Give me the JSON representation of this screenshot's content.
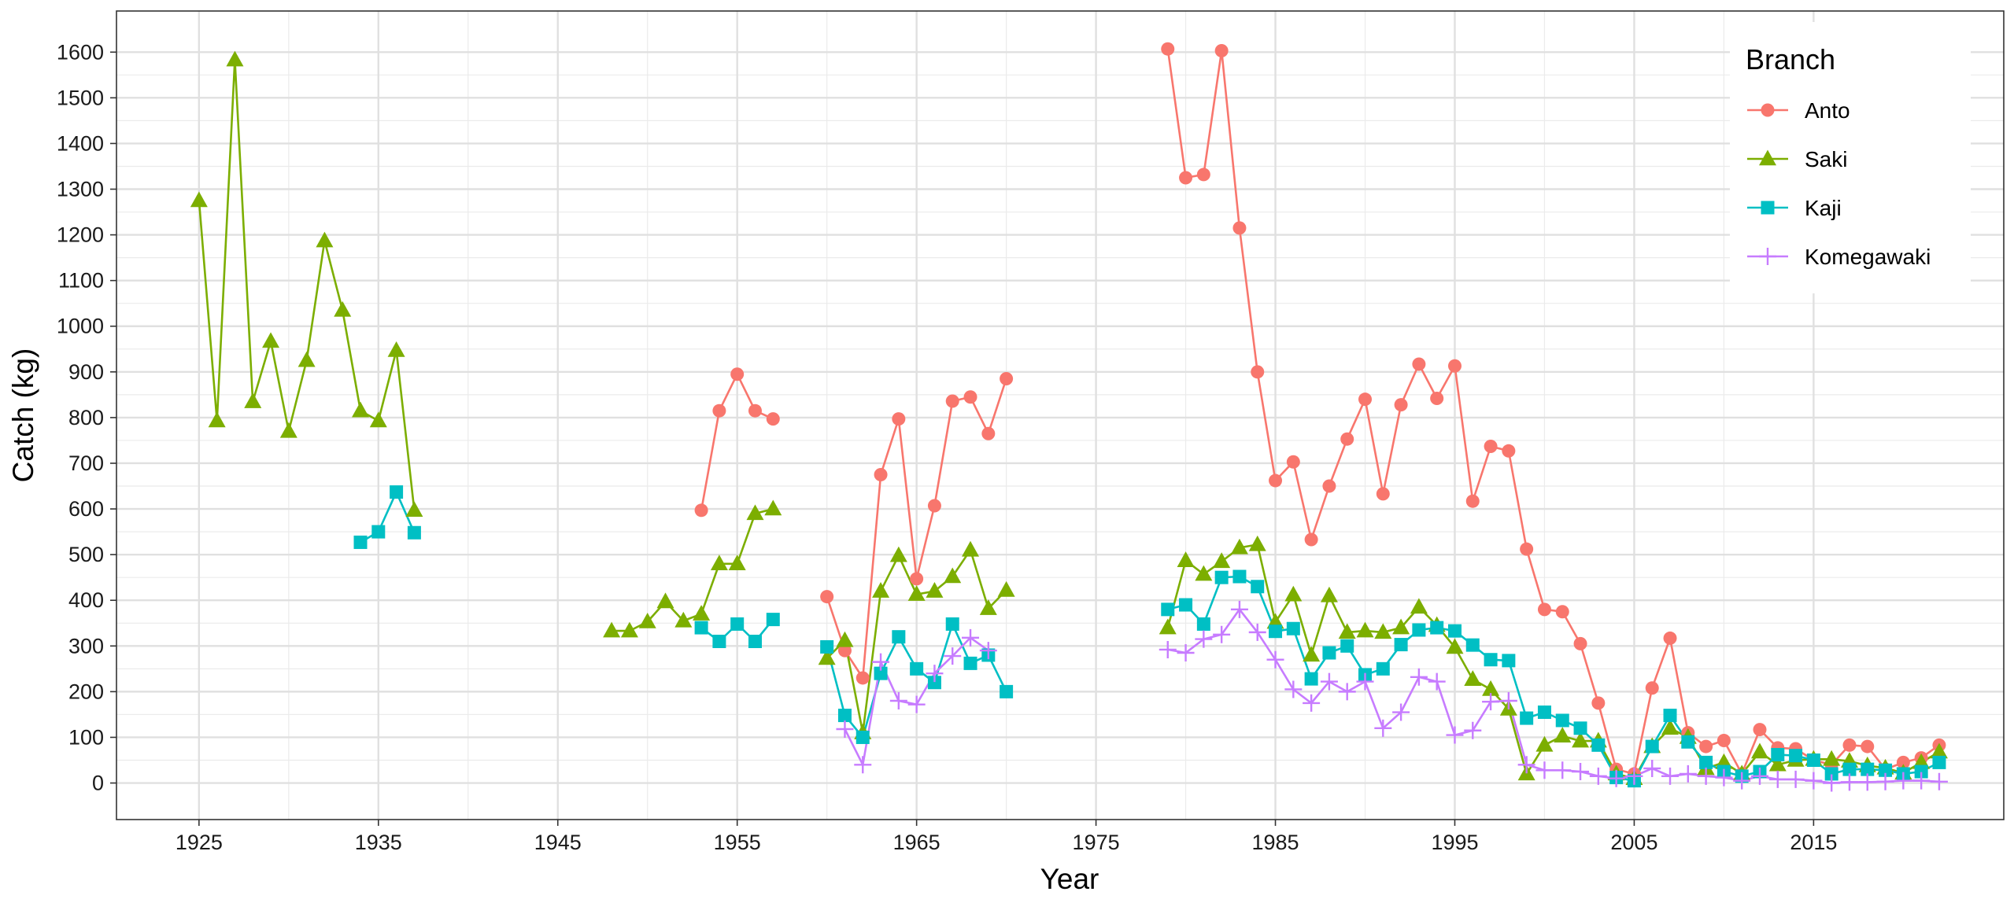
{
  "chart_data": {
    "type": "line",
    "xlabel": "Year",
    "ylabel": "Catch (kg)",
    "xlim": [
      1920.4,
      2025.6
    ],
    "ylim": [
      -80,
      1690
    ],
    "xticks": [
      1925,
      1935,
      1945,
      1955,
      1965,
      1975,
      1985,
      1995,
      2005,
      2015
    ],
    "yticks": [
      0,
      100,
      200,
      300,
      400,
      500,
      600,
      700,
      800,
      900,
      1000,
      1100,
      1200,
      1300,
      1400,
      1500,
      1600
    ],
    "grid": true,
    "legend": {
      "title": "Branch",
      "position": "top-right"
    },
    "series": [
      {
        "name": "Anto",
        "color": "#F8766D",
        "marker": "circle",
        "points": [
          [
            1953,
            597
          ],
          [
            1954,
            815
          ],
          [
            1955,
            895
          ],
          [
            1956,
            815
          ],
          [
            1957,
            797
          ],
          [
            1960,
            408
          ],
          [
            1961,
            290
          ],
          [
            1962,
            230
          ],
          [
            1963,
            675
          ],
          [
            1964,
            797
          ],
          [
            1965,
            447
          ],
          [
            1966,
            607
          ],
          [
            1967,
            836
          ],
          [
            1968,
            845
          ],
          [
            1969,
            765
          ],
          [
            1970,
            885
          ],
          [
            1979,
            1607
          ],
          [
            1980,
            1325
          ],
          [
            1981,
            1332
          ],
          [
            1982,
            1603
          ],
          [
            1983,
            1215
          ],
          [
            1984,
            900
          ],
          [
            1985,
            662
          ],
          [
            1986,
            703
          ],
          [
            1987,
            533
          ],
          [
            1988,
            650
          ],
          [
            1989,
            753
          ],
          [
            1990,
            840
          ],
          [
            1991,
            633
          ],
          [
            1992,
            828
          ],
          [
            1993,
            917
          ],
          [
            1994,
            842
          ],
          [
            1995,
            913
          ],
          [
            1996,
            617
          ],
          [
            1997,
            737
          ],
          [
            1998,
            727
          ],
          [
            1999,
            512
          ],
          [
            2000,
            380
          ],
          [
            2001,
            375
          ],
          [
            2002,
            305
          ],
          [
            2003,
            175
          ],
          [
            2004,
            30
          ],
          [
            2005,
            20
          ],
          [
            2006,
            208
          ],
          [
            2007,
            317
          ],
          [
            2008,
            110
          ],
          [
            2009,
            80
          ],
          [
            2010,
            93
          ],
          [
            2011,
            20
          ],
          [
            2012,
            117
          ],
          [
            2013,
            77
          ],
          [
            2014,
            75
          ],
          [
            2015,
            50
          ],
          [
            2016,
            40
          ],
          [
            2017,
            83
          ],
          [
            2018,
            80
          ],
          [
            2019,
            30
          ],
          [
            2020,
            45
          ],
          [
            2021,
            55
          ],
          [
            2022,
            83
          ]
        ]
      },
      {
        "name": "Saki",
        "color": "#7CAE00",
        "marker": "triangle",
        "points": [
          [
            1925,
            1275
          ],
          [
            1926,
            793
          ],
          [
            1927,
            1583
          ],
          [
            1928,
            835
          ],
          [
            1929,
            967
          ],
          [
            1930,
            770
          ],
          [
            1931,
            925
          ],
          [
            1932,
            1187
          ],
          [
            1933,
            1035
          ],
          [
            1934,
            815
          ],
          [
            1935,
            793
          ],
          [
            1936,
            947
          ],
          [
            1937,
            597
          ],
          [
            1948,
            333
          ],
          [
            1949,
            333
          ],
          [
            1950,
            353
          ],
          [
            1951,
            397
          ],
          [
            1952,
            355
          ],
          [
            1953,
            370
          ],
          [
            1954,
            480
          ],
          [
            1955,
            480
          ],
          [
            1956,
            590
          ],
          [
            1957,
            600
          ],
          [
            1960,
            273
          ],
          [
            1961,
            312
          ],
          [
            1962,
            110
          ],
          [
            1963,
            420
          ],
          [
            1964,
            498
          ],
          [
            1965,
            413
          ],
          [
            1966,
            420
          ],
          [
            1967,
            452
          ],
          [
            1968,
            510
          ],
          [
            1969,
            382
          ],
          [
            1970,
            422
          ],
          [
            1979,
            340
          ],
          [
            1980,
            487
          ],
          [
            1981,
            457
          ],
          [
            1982,
            485
          ],
          [
            1983,
            515
          ],
          [
            1984,
            522
          ],
          [
            1985,
            352
          ],
          [
            1986,
            412
          ],
          [
            1987,
            280
          ],
          [
            1988,
            410
          ],
          [
            1989,
            330
          ],
          [
            1990,
            333
          ],
          [
            1991,
            330
          ],
          [
            1992,
            340
          ],
          [
            1993,
            385
          ],
          [
            1994,
            345
          ],
          [
            1995,
            297
          ],
          [
            1996,
            227
          ],
          [
            1997,
            205
          ],
          [
            1998,
            162
          ],
          [
            1999,
            20
          ],
          [
            2000,
            83
          ],
          [
            2001,
            103
          ],
          [
            2002,
            92
          ],
          [
            2003,
            92
          ],
          [
            2004,
            20
          ],
          [
            2005,
            10
          ],
          [
            2006,
            80
          ],
          [
            2007,
            120
          ],
          [
            2008,
            100
          ],
          [
            2009,
            32
          ],
          [
            2010,
            45
          ],
          [
            2011,
            20
          ],
          [
            2012,
            68
          ],
          [
            2013,
            40
          ],
          [
            2014,
            50
          ],
          [
            2015,
            52
          ],
          [
            2016,
            52
          ],
          [
            2017,
            48
          ],
          [
            2018,
            38
          ],
          [
            2019,
            33
          ],
          [
            2020,
            22
          ],
          [
            2021,
            45
          ],
          [
            2022,
            68
          ]
        ]
      },
      {
        "name": "Kaji",
        "color": "#00BFC4",
        "marker": "square",
        "points": [
          [
            1934,
            527
          ],
          [
            1935,
            550
          ],
          [
            1936,
            637
          ],
          [
            1937,
            548
          ],
          [
            1953,
            340
          ],
          [
            1954,
            310
          ],
          [
            1955,
            348
          ],
          [
            1956,
            310
          ],
          [
            1957,
            358
          ],
          [
            1960,
            298
          ],
          [
            1961,
            148
          ],
          [
            1962,
            100
          ],
          [
            1963,
            240
          ],
          [
            1964,
            320
          ],
          [
            1965,
            250
          ],
          [
            1966,
            220
          ],
          [
            1967,
            348
          ],
          [
            1968,
            262
          ],
          [
            1969,
            280
          ],
          [
            1970,
            200
          ],
          [
            1979,
            380
          ],
          [
            1980,
            390
          ],
          [
            1981,
            348
          ],
          [
            1982,
            450
          ],
          [
            1983,
            452
          ],
          [
            1984,
            430
          ],
          [
            1985,
            332
          ],
          [
            1986,
            338
          ],
          [
            1987,
            228
          ],
          [
            1988,
            285
          ],
          [
            1989,
            300
          ],
          [
            1990,
            237
          ],
          [
            1991,
            250
          ],
          [
            1992,
            303
          ],
          [
            1993,
            335
          ],
          [
            1994,
            340
          ],
          [
            1995,
            333
          ],
          [
            1996,
            302
          ],
          [
            1997,
            270
          ],
          [
            1998,
            268
          ],
          [
            1999,
            142
          ],
          [
            2000,
            155
          ],
          [
            2001,
            137
          ],
          [
            2002,
            120
          ],
          [
            2003,
            83
          ],
          [
            2004,
            12
          ],
          [
            2005,
            5
          ],
          [
            2006,
            80
          ],
          [
            2007,
            148
          ],
          [
            2008,
            90
          ],
          [
            2009,
            45
          ],
          [
            2010,
            25
          ],
          [
            2011,
            15
          ],
          [
            2012,
            25
          ],
          [
            2013,
            62
          ],
          [
            2014,
            60
          ],
          [
            2015,
            50
          ],
          [
            2016,
            20
          ],
          [
            2017,
            30
          ],
          [
            2018,
            30
          ],
          [
            2019,
            28
          ],
          [
            2020,
            20
          ],
          [
            2021,
            25
          ],
          [
            2022,
            45
          ]
        ]
      },
      {
        "name": "Komegawaki",
        "color": "#C77CFF",
        "marker": "plus",
        "points": [
          [
            1961,
            118
          ],
          [
            1962,
            40
          ],
          [
            1963,
            265
          ],
          [
            1964,
            180
          ],
          [
            1965,
            172
          ],
          [
            1966,
            240
          ],
          [
            1967,
            278
          ],
          [
            1968,
            318
          ],
          [
            1969,
            290
          ],
          [
            1979,
            292
          ],
          [
            1980,
            285
          ],
          [
            1981,
            315
          ],
          [
            1982,
            325
          ],
          [
            1983,
            380
          ],
          [
            1984,
            330
          ],
          [
            1985,
            270
          ],
          [
            1986,
            205
          ],
          [
            1987,
            175
          ],
          [
            1988,
            222
          ],
          [
            1989,
            200
          ],
          [
            1990,
            222
          ],
          [
            1991,
            120
          ],
          [
            1992,
            155
          ],
          [
            1993,
            232
          ],
          [
            1994,
            222
          ],
          [
            1995,
            105
          ],
          [
            1996,
            115
          ],
          [
            1997,
            178
          ],
          [
            1998,
            180
          ],
          [
            1999,
            40
          ],
          [
            2000,
            28
          ],
          [
            2001,
            28
          ],
          [
            2002,
            25
          ],
          [
            2003,
            15
          ],
          [
            2004,
            10
          ],
          [
            2005,
            15
          ],
          [
            2006,
            32
          ],
          [
            2007,
            15
          ],
          [
            2008,
            20
          ],
          [
            2009,
            15
          ],
          [
            2010,
            12
          ],
          [
            2011,
            5
          ],
          [
            2012,
            15
          ],
          [
            2013,
            8
          ],
          [
            2014,
            8
          ],
          [
            2015,
            5
          ],
          [
            2016,
            0
          ],
          [
            2017,
            2
          ],
          [
            2018,
            2
          ],
          [
            2019,
            3
          ],
          [
            2020,
            5
          ],
          [
            2021,
            5
          ],
          [
            2022,
            3
          ]
        ]
      }
    ]
  }
}
